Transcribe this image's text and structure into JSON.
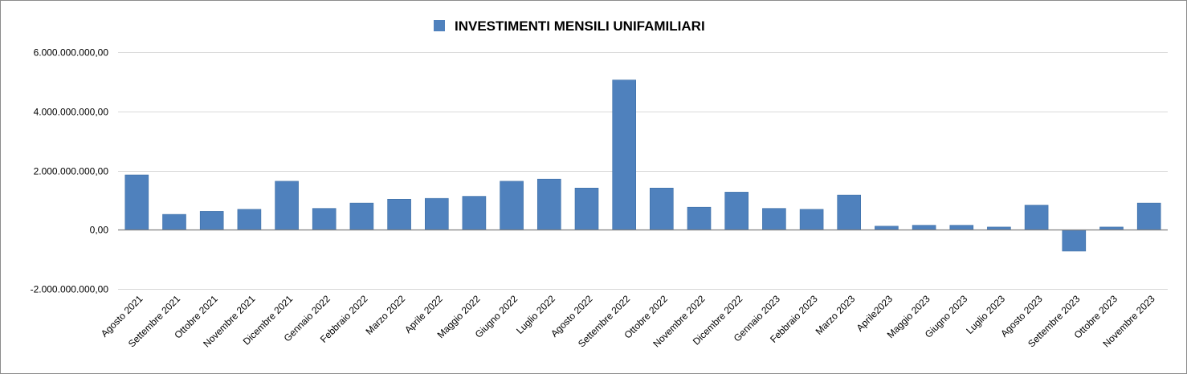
{
  "chart_data": {
    "type": "bar",
    "title": "",
    "xlabel": "",
    "ylabel": "",
    "categories": [
      "Agosto 2021",
      "Settembre 2021",
      "Ottobre 2021",
      "Novembre 2021",
      "Dicembre 2021",
      "Gennaio 2022",
      "Febbraio 2022",
      "Marzo 2022",
      "Aprile 2022",
      "Maggio 2022",
      "Giugno 2022",
      "Luglio 2022",
      "Agosto 2022",
      "Settembre 2022",
      "Ottobre 2022",
      "Novembre 2022",
      "Dicembre 2022",
      "Gennaio 2023",
      "Febbraio 2023",
      "Marzo 2023",
      "Aprile2023",
      "Maggio 2023",
      "Giugno 2023",
      "Luglio 2023",
      "Agosto 2023",
      "Settembre 2023",
      "Ottobre 2023",
      "Novembre 2023"
    ],
    "series": [
      {
        "name": "INVESTIMENTI MENSILI UNIFAMILIARI",
        "color": "#4f81bd",
        "values": [
          1850000000,
          520000000,
          620000000,
          690000000,
          1640000000,
          720000000,
          900000000,
          1030000000,
          1060000000,
          1130000000,
          1640000000,
          1710000000,
          1410000000,
          5060000000,
          1410000000,
          760000000,
          1270000000,
          720000000,
          690000000,
          1170000000,
          120000000,
          150000000,
          150000000,
          90000000,
          830000000,
          -720000000,
          90000000,
          900000000
        ]
      }
    ],
    "ylim": [
      -2000000000,
      6000000000
    ],
    "yticks": [
      {
        "value": 6000000000,
        "label": "6.000.000.000,00"
      },
      {
        "value": 4000000000,
        "label": "4.000.000.000,00"
      },
      {
        "value": 2000000000,
        "label": "2.000.000.000,00"
      },
      {
        "value": 0,
        "label": "0,00"
      },
      {
        "value": -2000000000,
        "label": "-2.000.000.000,00"
      }
    ],
    "legend": {
      "position": "top-center",
      "label": "INVESTIMENTI MENSILI UNIFAMILIARI"
    },
    "grid": true
  }
}
